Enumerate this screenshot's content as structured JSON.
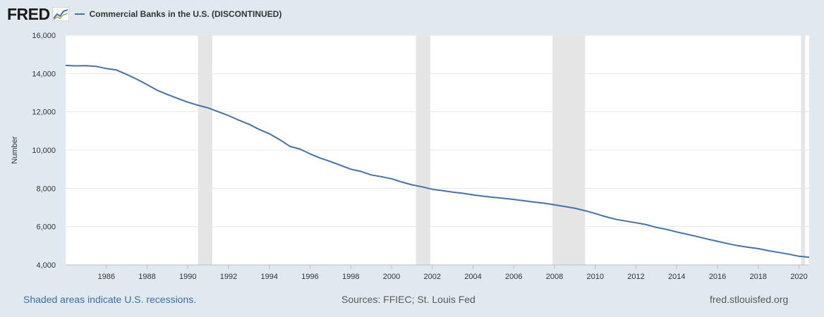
{
  "header": {
    "logo_text": "FRED",
    "legend_label": "Commercial Banks in the U.S. (DISCONTINUED)",
    "series_color": "#4572a7"
  },
  "footer": {
    "recession_note": "Shaded areas indicate U.S. recessions.",
    "sources": "Sources: FFIEC; St. Louis Fed",
    "site": "fred.stlouisfed.org"
  },
  "chart_data": {
    "type": "line",
    "title": "Commercial Banks in the U.S. (DISCONTINUED)",
    "ylabel": "Number",
    "xlabel": "",
    "xlim": [
      1984.0,
      2020.5
    ],
    "ylim": [
      4000,
      16000
    ],
    "x_ticks": [
      "1986",
      "1988",
      "1990",
      "1992",
      "1994",
      "1996",
      "1998",
      "2000",
      "2002",
      "2004",
      "2006",
      "2008",
      "2010",
      "2012",
      "2014",
      "2016",
      "2018",
      "2020"
    ],
    "y_ticks": [
      "4,000",
      "6,000",
      "8,000",
      "10,000",
      "12,000",
      "14,000",
      "16,000"
    ],
    "grid": true,
    "recessions": [
      [
        1990.5,
        1991.2
      ],
      [
        2001.2,
        2001.9
      ],
      [
        2007.9,
        2009.5
      ],
      [
        2020.1,
        2020.3
      ]
    ],
    "series": [
      {
        "name": "Commercial Banks in the U.S. (DISCONTINUED)",
        "color": "#4572a7",
        "points": [
          [
            1984.0,
            14420
          ],
          [
            1984.5,
            14400
          ],
          [
            1985.0,
            14410
          ],
          [
            1985.5,
            14370
          ],
          [
            1986.0,
            14260
          ],
          [
            1986.5,
            14180
          ],
          [
            1987.0,
            13950
          ],
          [
            1987.5,
            13700
          ],
          [
            1988.0,
            13420
          ],
          [
            1988.5,
            13120
          ],
          [
            1989.0,
            12900
          ],
          [
            1989.5,
            12700
          ],
          [
            1990.0,
            12500
          ],
          [
            1990.5,
            12340
          ],
          [
            1991.0,
            12200
          ],
          [
            1991.5,
            12000
          ],
          [
            1992.0,
            11800
          ],
          [
            1992.5,
            11560
          ],
          [
            1993.0,
            11350
          ],
          [
            1993.5,
            11080
          ],
          [
            1994.0,
            10850
          ],
          [
            1994.5,
            10550
          ],
          [
            1995.0,
            10200
          ],
          [
            1995.5,
            10050
          ],
          [
            1996.0,
            9800
          ],
          [
            1996.5,
            9580
          ],
          [
            1997.0,
            9400
          ],
          [
            1997.5,
            9200
          ],
          [
            1998.0,
            9000
          ],
          [
            1998.5,
            8880
          ],
          [
            1999.0,
            8700
          ],
          [
            1999.5,
            8610
          ],
          [
            2000.0,
            8500
          ],
          [
            2000.5,
            8330
          ],
          [
            2001.0,
            8180
          ],
          [
            2001.5,
            8080
          ],
          [
            2002.0,
            7950
          ],
          [
            2002.5,
            7880
          ],
          [
            2003.0,
            7800
          ],
          [
            2003.5,
            7740
          ],
          [
            2004.0,
            7660
          ],
          [
            2004.5,
            7590
          ],
          [
            2005.0,
            7530
          ],
          [
            2005.5,
            7480
          ],
          [
            2006.0,
            7420
          ],
          [
            2006.5,
            7350
          ],
          [
            2007.0,
            7280
          ],
          [
            2007.5,
            7220
          ],
          [
            2008.0,
            7140
          ],
          [
            2008.5,
            7050
          ],
          [
            2009.0,
            6960
          ],
          [
            2009.5,
            6830
          ],
          [
            2010.0,
            6680
          ],
          [
            2010.5,
            6520
          ],
          [
            2011.0,
            6380
          ],
          [
            2011.5,
            6290
          ],
          [
            2012.0,
            6200
          ],
          [
            2012.5,
            6100
          ],
          [
            2013.0,
            5960
          ],
          [
            2013.5,
            5850
          ],
          [
            2014.0,
            5720
          ],
          [
            2014.5,
            5600
          ],
          [
            2015.0,
            5480
          ],
          [
            2015.5,
            5350
          ],
          [
            2016.0,
            5230
          ],
          [
            2016.5,
            5110
          ],
          [
            2017.0,
            5000
          ],
          [
            2017.5,
            4920
          ],
          [
            2018.0,
            4850
          ],
          [
            2018.5,
            4740
          ],
          [
            2019.0,
            4650
          ],
          [
            2019.5,
            4560
          ],
          [
            2020.0,
            4450
          ],
          [
            2020.5,
            4400
          ]
        ]
      }
    ]
  }
}
